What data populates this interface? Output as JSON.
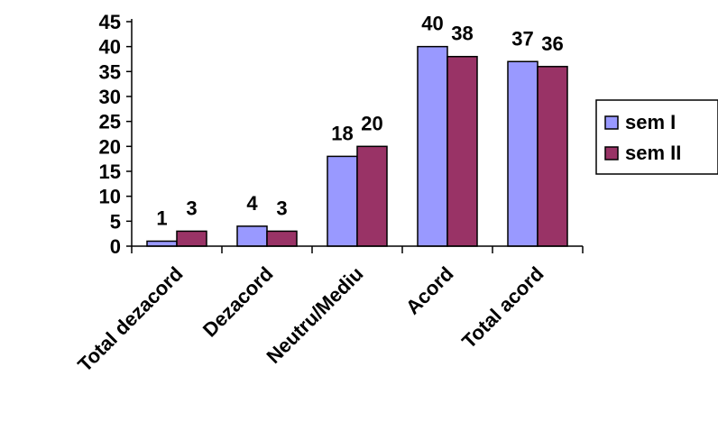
{
  "chart_data": {
    "type": "bar",
    "categories": [
      "Total dezacord",
      "Dezacord",
      "Neutru/Mediu",
      "Acord",
      "Total acord"
    ],
    "series": [
      {
        "name": "sem I",
        "values": [
          1,
          4,
          18,
          40,
          37
        ],
        "color": "#9999ff"
      },
      {
        "name": "sem II",
        "values": [
          3,
          3,
          20,
          38,
          36
        ],
        "color": "#993366"
      }
    ],
    "ylim": [
      0,
      45
    ],
    "yticks": [
      "0",
      "5",
      "10",
      "15",
      "20",
      "25",
      "30",
      "35",
      "40",
      "45"
    ],
    "data_labels": [
      [
        "1",
        "4",
        "18",
        "40",
        "37"
      ],
      [
        "3",
        "3",
        "20",
        "38",
        "36"
      ]
    ],
    "grid": false,
    "legend_position": "right"
  }
}
